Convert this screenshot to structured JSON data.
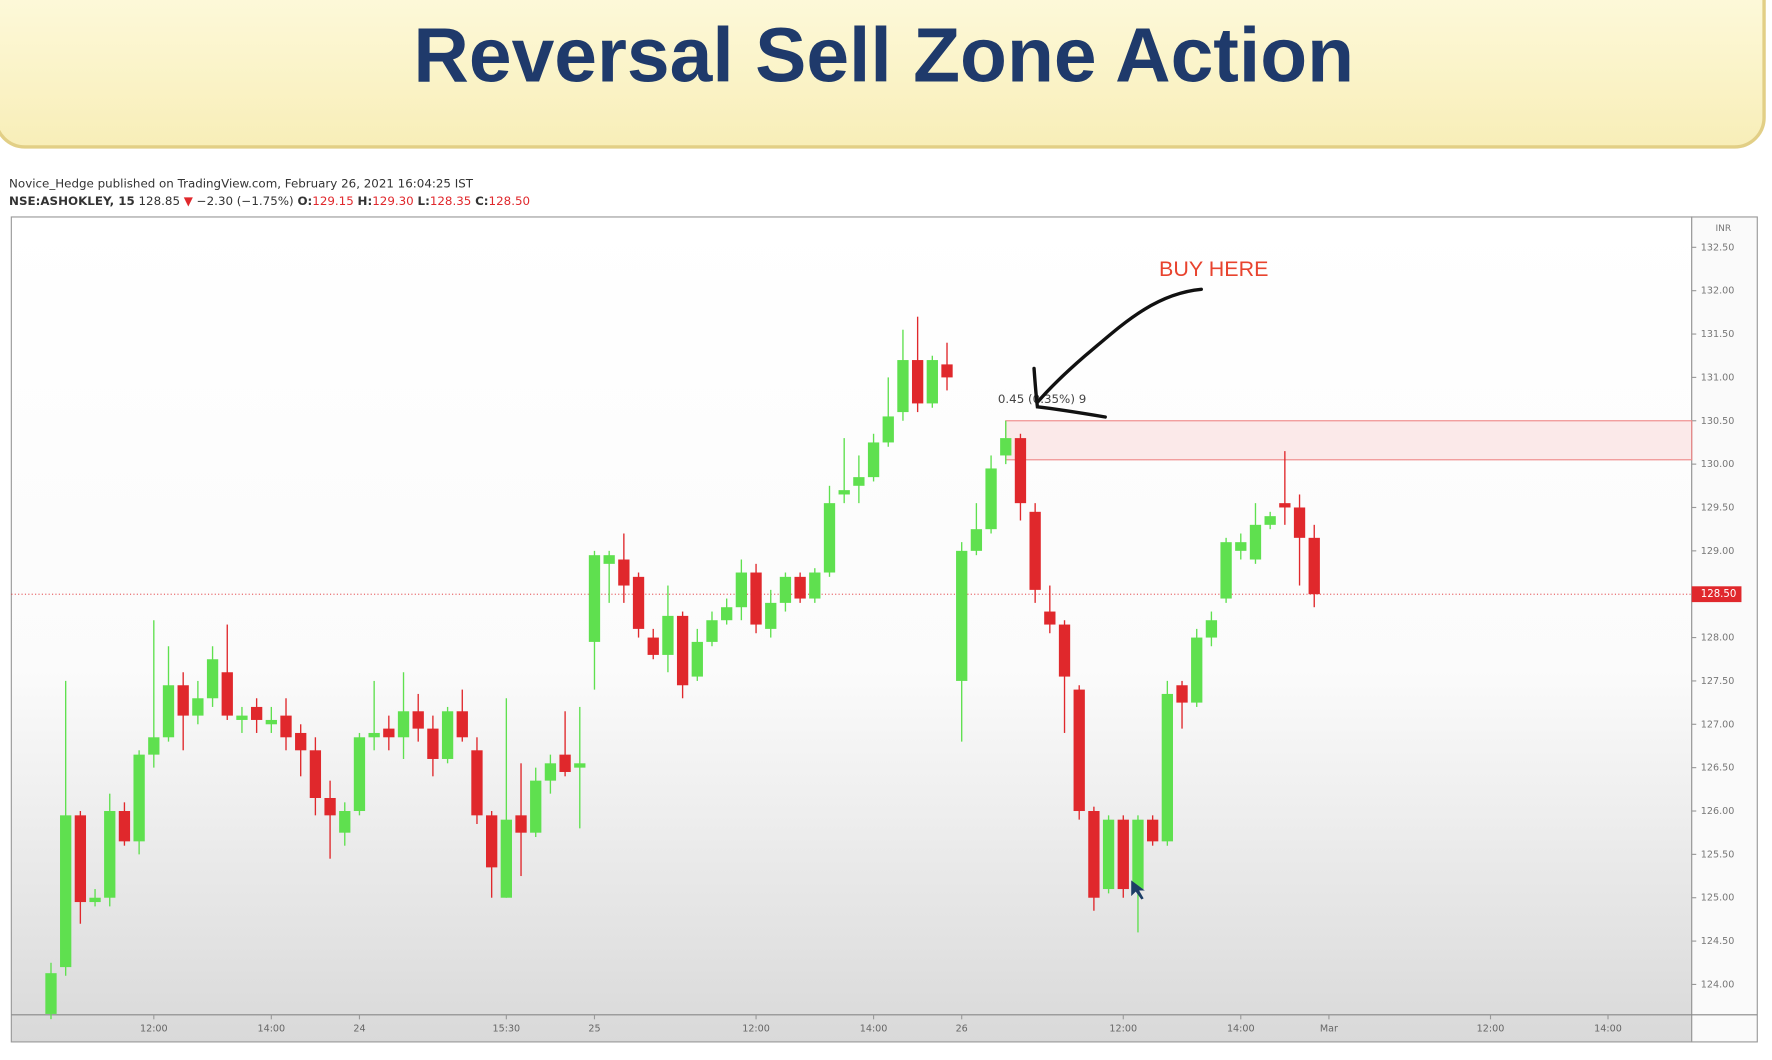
{
  "chart_data": {
    "type": "candlestick",
    "title": "Reversal Sell Zone Action",
    "publisher": "Novice_Hedge published on TradingView.com, February 26, 2021 16:04:25 IST",
    "symbol": "NSE:ASHOKLEY, 15",
    "prev": "128.85",
    "arrow": "▼",
    "change": "−2.30 (−1.75%)",
    "ohlc_labels": [
      "O:",
      "H:",
      "L:",
      "C:"
    ],
    "ohlc_values": [
      "129.15",
      "129.30",
      "128.35",
      "128.50"
    ],
    "currency": "INR",
    "annotation": "BUY HERE",
    "zone": {
      "x0": 65,
      "low": 130.05,
      "high": 130.5,
      "label": "0.45 (0.35%) 9"
    },
    "last_price": {
      "value": 128.5,
      "label": "128.50"
    },
    "up_color": "#5fe04f",
    "down_color": "#e0282c",
    "x": [
      0,
      1,
      2,
      3,
      4,
      5,
      6,
      7,
      8,
      9,
      10,
      11,
      12,
      13,
      14,
      15,
      16,
      17,
      18,
      19,
      20,
      21,
      22,
      23,
      24,
      25,
      26,
      27,
      28,
      29,
      30,
      31,
      32,
      33,
      34,
      35,
      36,
      37,
      38,
      39,
      40,
      41,
      42,
      43,
      44,
      45,
      46,
      47,
      48,
      49,
      50,
      51,
      52,
      53,
      54,
      55,
      56,
      57,
      58,
      59,
      60,
      61,
      62,
      63,
      64,
      65,
      66,
      67,
      68,
      69,
      70,
      71,
      72,
      73,
      74,
      75,
      76,
      77,
      78,
      79,
      80,
      81,
      82,
      83,
      84,
      85,
      86
    ],
    "open": [
      123.66,
      124.2,
      125.95,
      124.95,
      125.0,
      126.0,
      125.65,
      126.65,
      126.85,
      127.45,
      127.1,
      127.3,
      127.6,
      127.05,
      127.2,
      127.0,
      127.1,
      126.9,
      126.7,
      126.15,
      125.75,
      126.0,
      126.85,
      126.95,
      126.85,
      127.15,
      126.95,
      126.6,
      127.15,
      126.7,
      125.95,
      125.0,
      125.95,
      125.75,
      126.35,
      126.65,
      126.5,
      127.95,
      128.85,
      128.9,
      128.7,
      128.0,
      127.8,
      128.25,
      127.55,
      127.95,
      128.2,
      128.35,
      128.75,
      128.1,
      128.4,
      128.7,
      128.45,
      128.75,
      129.65,
      129.75,
      129.85,
      130.25,
      130.6,
      131.2,
      130.7,
      131.15,
      127.5,
      129.0,
      129.25,
      130.1,
      130.3,
      129.45,
      128.3,
      128.15,
      127.4,
      126.0,
      125.1,
      125.9,
      125.1,
      125.9,
      125.65,
      127.45,
      127.25,
      128.0,
      128.45,
      129.0,
      128.9,
      129.3,
      129.55,
      129.5,
      129.15
    ],
    "high": [
      124.25,
      127.5,
      126.0,
      125.1,
      126.2,
      126.1,
      126.7,
      128.2,
      127.9,
      127.6,
      127.5,
      127.9,
      128.15,
      127.2,
      127.3,
      127.2,
      127.3,
      127.0,
      126.85,
      126.35,
      126.1,
      126.9,
      127.5,
      127.1,
      127.6,
      127.35,
      127.1,
      127.2,
      127.4,
      126.85,
      126.0,
      127.3,
      126.55,
      126.5,
      126.65,
      127.15,
      127.2,
      129.0,
      129.0,
      129.2,
      128.75,
      128.1,
      128.6,
      128.3,
      128.1,
      128.3,
      128.45,
      128.9,
      128.85,
      128.55,
      128.75,
      128.75,
      128.8,
      129.75,
      130.3,
      130.1,
      130.35,
      131.0,
      131.55,
      131.7,
      131.25,
      131.4,
      129.1,
      129.55,
      130.1,
      130.5,
      130.35,
      129.55,
      128.6,
      128.2,
      127.45,
      126.05,
      125.95,
      125.95,
      125.95,
      125.95,
      127.5,
      127.5,
      128.1,
      128.3,
      129.15,
      129.2,
      129.55,
      129.45,
      130.15,
      129.65,
      129.3
    ],
    "low": [
      123.6,
      124.1,
      124.7,
      124.9,
      124.9,
      125.6,
      125.5,
      126.5,
      126.8,
      126.7,
      127.0,
      127.2,
      127.05,
      126.9,
      126.9,
      126.9,
      126.7,
      126.4,
      125.95,
      125.45,
      125.6,
      125.95,
      126.7,
      126.7,
      126.6,
      126.8,
      126.4,
      126.55,
      126.8,
      125.85,
      125.0,
      125.0,
      125.25,
      125.7,
      126.2,
      126.4,
      125.8,
      127.4,
      128.4,
      128.4,
      128.0,
      127.75,
      127.6,
      127.3,
      127.5,
      127.9,
      128.15,
      128.2,
      128.05,
      128.0,
      128.3,
      128.4,
      128.4,
      128.7,
      129.55,
      129.55,
      129.8,
      130.2,
      130.5,
      130.6,
      130.65,
      130.85,
      126.8,
      128.95,
      129.2,
      130.0,
      129.35,
      128.4,
      128.05,
      126.9,
      125.9,
      124.85,
      125.05,
      125.0,
      124.6,
      125.6,
      125.6,
      126.95,
      127.2,
      127.9,
      128.4,
      128.9,
      128.85,
      129.25,
      129.3,
      128.6,
      128.35
    ],
    "close": [
      124.13,
      125.95,
      124.95,
      125.0,
      126.0,
      125.65,
      126.65,
      126.85,
      127.45,
      127.1,
      127.3,
      127.75,
      127.1,
      127.1,
      127.05,
      127.05,
      126.85,
      126.7,
      126.15,
      125.95,
      126.0,
      126.85,
      126.9,
      126.85,
      127.15,
      126.95,
      126.6,
      127.15,
      126.85,
      125.95,
      125.35,
      125.9,
      125.75,
      126.35,
      126.55,
      126.45,
      126.55,
      128.95,
      128.95,
      128.6,
      128.1,
      127.8,
      128.25,
      127.45,
      127.95,
      128.2,
      128.35,
      128.75,
      128.15,
      128.4,
      128.7,
      128.45,
      128.75,
      129.55,
      129.7,
      129.85,
      130.25,
      130.55,
      131.2,
      130.7,
      131.2,
      131.0,
      129.0,
      129.25,
      129.95,
      130.3,
      129.55,
      128.55,
      128.15,
      127.55,
      126.0,
      125.0,
      125.9,
      125.1,
      125.9,
      125.65,
      127.35,
      127.25,
      128.0,
      128.2,
      129.1,
      129.1,
      129.3,
      129.4,
      129.5,
      129.15,
      128.5
    ],
    "xlim": [
      -2.7,
      111.7
    ],
    "xticks": [
      {
        "value": 7,
        "label": "12:00"
      },
      {
        "value": 15,
        "label": "14:00"
      },
      {
        "value": 21,
        "label": "24"
      },
      {
        "value": 31,
        "label": "15:30"
      },
      {
        "value": 37,
        "label": "25"
      },
      {
        "value": 48,
        "label": "12:00"
      },
      {
        "value": 56,
        "label": "14:00"
      },
      {
        "value": 62,
        "label": "26"
      },
      {
        "value": 73,
        "label": "12:00"
      },
      {
        "value": 81,
        "label": "14:00"
      },
      {
        "value": 87,
        "label": "Mar"
      },
      {
        "value": 98,
        "label": "12:00"
      },
      {
        "value": 106,
        "label": "14:00"
      }
    ],
    "ylim": [
      123.65,
      132.85
    ],
    "yticks": [
      {
        "value": 124,
        "label": "124.00"
      },
      {
        "value": 124.5,
        "label": "124.50"
      },
      {
        "value": 125,
        "label": "125.00"
      },
      {
        "value": 125.5,
        "label": "125.50"
      },
      {
        "value": 126,
        "label": "126.00"
      },
      {
        "value": 126.5,
        "label": "126.50"
      },
      {
        "value": 127,
        "label": "127.00"
      },
      {
        "value": 127.5,
        "label": "127.50"
      },
      {
        "value": 128,
        "label": "128.00"
      },
      {
        "value": 128.5,
        "label": "128.50"
      },
      {
        "value": 129,
        "label": "129.00"
      },
      {
        "value": 129.5,
        "label": "129.50"
      },
      {
        "value": 130,
        "label": "130.00"
      },
      {
        "value": 130.5,
        "label": "130.50"
      },
      {
        "value": 131,
        "label": "131.00"
      },
      {
        "value": 131.5,
        "label": "131.50"
      },
      {
        "value": 132,
        "label": "132.00"
      },
      {
        "value": 132.5,
        "label": "132.50"
      }
    ]
  }
}
